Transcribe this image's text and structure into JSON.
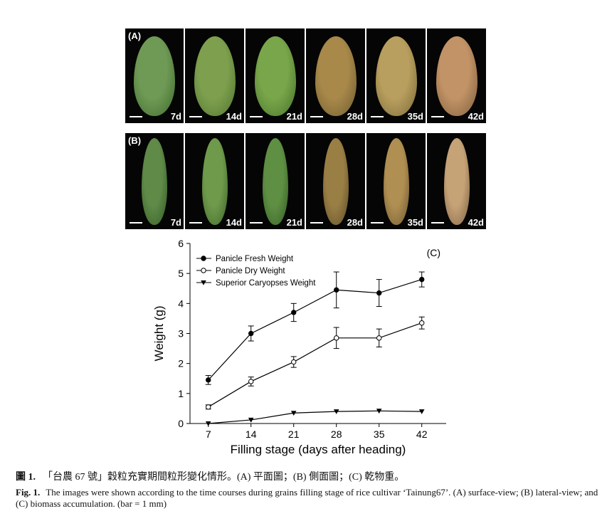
{
  "row_a": {
    "label": "(A)",
    "frames": [
      {
        "day": "7d",
        "color": "#6f9a55",
        "edge": "#3e6a2d"
      },
      {
        "day": "14d",
        "color": "#7ea04e",
        "edge": "#4f7430"
      },
      {
        "day": "21d",
        "color": "#79a64a",
        "edge": "#46712b"
      },
      {
        "day": "28d",
        "color": "#a8894a",
        "edge": "#6e5a2e"
      },
      {
        "day": "35d",
        "color": "#b99f5f",
        "edge": "#7a6836"
      },
      {
        "day": "42d",
        "color": "#c29366",
        "edge": "#7c5c3c"
      }
    ]
  },
  "row_b": {
    "label": "(B)",
    "frames": [
      {
        "day": "7d",
        "color": "#5f8a48",
        "edge": "#345a26"
      },
      {
        "day": "14d",
        "color": "#6f9a4c",
        "edge": "#3d6428"
      },
      {
        "day": "21d",
        "color": "#5f8f43",
        "edge": "#355c25"
      },
      {
        "day": "28d",
        "color": "#9a7f45",
        "edge": "#5e4c28"
      },
      {
        "day": "35d",
        "color": "#b08f52",
        "edge": "#6c5530"
      },
      {
        "day": "42d",
        "color": "#c6a277",
        "edge": "#7c6242"
      }
    ]
  },
  "chart_data": {
    "type": "line",
    "panel_label": "(C)",
    "xlabel": "Filling stage (days after heading)",
    "ylabel": "Weight (g)",
    "x": [
      7,
      14,
      21,
      28,
      35,
      42
    ],
    "ylim": [
      0,
      6
    ],
    "yticks": [
      0,
      1,
      2,
      3,
      4,
      5,
      6
    ],
    "legend_position": "top-left",
    "grid": false,
    "series": [
      {
        "name": "Panicle Fresh Weight",
        "marker": "filled-circle",
        "values": [
          1.45,
          3.0,
          3.7,
          4.45,
          4.35,
          4.8
        ],
        "errors": [
          0.15,
          0.25,
          0.3,
          0.6,
          0.45,
          0.25
        ]
      },
      {
        "name": "Panicle Dry Weight",
        "marker": "open-circle",
        "values": [
          0.55,
          1.4,
          2.05,
          2.85,
          2.85,
          3.35
        ],
        "errors": [
          0.07,
          0.15,
          0.18,
          0.35,
          0.3,
          0.2
        ]
      },
      {
        "name": "Superior Caryopses Weight",
        "marker": "filled-triangle-down",
        "values": [
          0.0,
          0.12,
          0.35,
          0.4,
          0.42,
          0.4
        ],
        "errors": [
          0,
          0,
          0,
          0,
          0,
          0
        ]
      }
    ]
  },
  "caption_zh": {
    "label": "圖 1.",
    "text": "「台農 67 號」穀粒充實期間粒形變化情形。(A) 平面圖；(B) 側面圖；(C) 乾物重。"
  },
  "caption_en": {
    "label": "Fig. 1.",
    "text": "The images were shown according to the time courses during grains filling stage of rice cultivar ‘Tainung67’. (A) surface-view; (B) lateral-view; and (C) biomass accumulation. (bar = 1 mm)"
  }
}
